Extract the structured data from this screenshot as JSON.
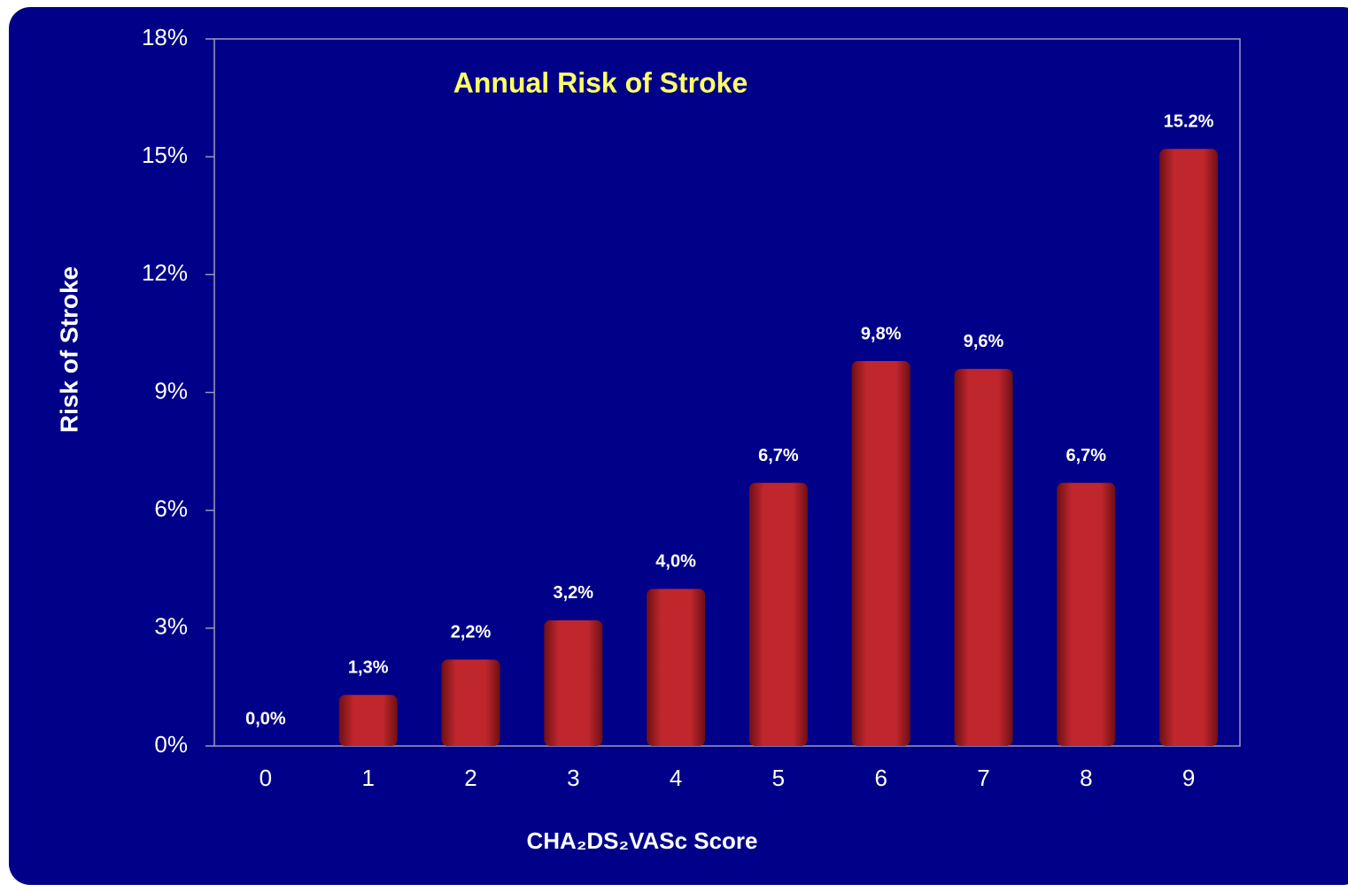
{
  "chart_data": {
    "type": "bar",
    "title": "Annual Risk of Stroke",
    "x_label": "CHA₂DS₂VASc Score",
    "y_label": "Risk of Stroke",
    "categories": [
      "0",
      "1",
      "2",
      "3",
      "4",
      "5",
      "6",
      "7",
      "8",
      "9"
    ],
    "values": [
      0,
      1.3,
      2.2,
      3.2,
      4.0,
      6.7,
      9.8,
      9.6,
      6.7,
      15.2
    ],
    "value_labels": [
      "0,0%",
      "1,3%",
      "2,2%",
      "3,2%",
      "4,0%",
      "6,7%",
      "9,8%",
      "9,6%",
      "6,7%",
      "15.2%"
    ],
    "color": "#c0272d",
    "ylim": [
      0,
      18
    ],
    "yticks": [
      {
        "value": 0,
        "label": "0%"
      },
      {
        "value": 3,
        "label": "3%"
      },
      {
        "value": 6,
        "label": "6%"
      },
      {
        "value": 9,
        "label": "9%"
      },
      {
        "value": 12,
        "label": "12%"
      },
      {
        "value": 15,
        "label": "15%"
      },
      {
        "value": 18,
        "label": "18%"
      }
    ],
    "grid": false
  }
}
